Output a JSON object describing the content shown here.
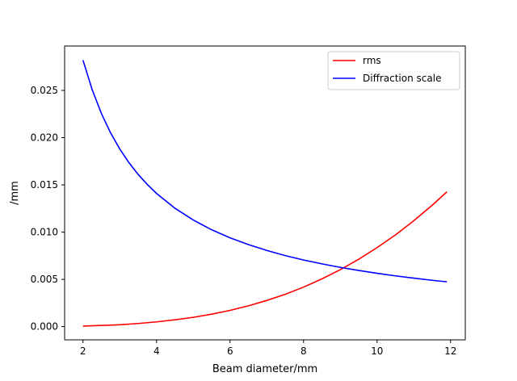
{
  "chart_data": {
    "type": "line",
    "title": "",
    "xlabel": "Beam diameter/mm",
    "ylabel": "/mm",
    "xlim": [
      1.5,
      12.4
    ],
    "ylim": [
      -0.0014,
      0.0297
    ],
    "xticks": [
      2,
      4,
      6,
      8,
      10,
      12
    ],
    "xtick_labels": [
      "2",
      "4",
      "6",
      "8",
      "10",
      "12"
    ],
    "yticks": [
      0.0,
      0.005,
      0.01,
      0.015,
      0.02,
      0.025
    ],
    "ytick_labels": [
      "0.000",
      "0.005",
      "0.010",
      "0.015",
      "0.020",
      "0.025"
    ],
    "grid": false,
    "legend_position": "upper right",
    "series": [
      {
        "name": "rms",
        "color": "#ff0000",
        "x": [
          2.0,
          2.5,
          3.0,
          3.5,
          4.0,
          4.5,
          5.0,
          5.5,
          6.0,
          6.5,
          7.0,
          7.5,
          8.0,
          8.5,
          9.0,
          9.5,
          10.0,
          10.5,
          11.0,
          11.5,
          11.9
        ],
        "y": [
          6e-05,
          0.00012,
          0.0002,
          0.00033,
          0.0005,
          0.00072,
          0.00098,
          0.00132,
          0.00172,
          0.0022,
          0.00277,
          0.00342,
          0.00418,
          0.00505,
          0.00603,
          0.00713,
          0.00836,
          0.00971,
          0.01121,
          0.01285,
          0.01427
        ]
      },
      {
        "name": "Diffraction scale",
        "color": "#0000ff",
        "x": [
          2.0,
          2.25,
          2.5,
          2.75,
          3.0,
          3.25,
          3.5,
          3.75,
          4.0,
          4.5,
          5.0,
          5.5,
          6.0,
          6.5,
          7.0,
          7.5,
          8.0,
          8.5,
          9.0,
          9.5,
          10.0,
          10.5,
          11.0,
          11.5,
          11.9
        ],
        "y": [
          0.0282,
          0.02507,
          0.02256,
          0.02051,
          0.0188,
          0.01735,
          0.01611,
          0.01504,
          0.0141,
          0.01253,
          0.01128,
          0.01025,
          0.0094,
          0.00868,
          0.00806,
          0.00752,
          0.00705,
          0.00664,
          0.00627,
          0.00594,
          0.00564,
          0.00537,
          0.00513,
          0.0049,
          0.00474
        ]
      }
    ]
  }
}
